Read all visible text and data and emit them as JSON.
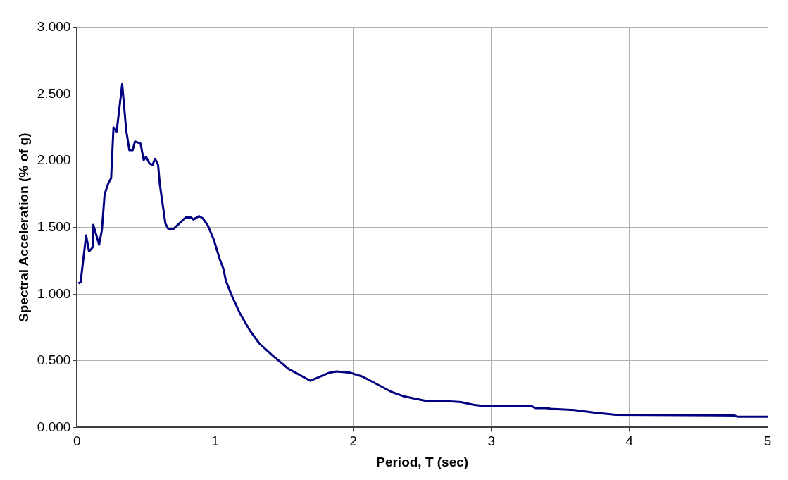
{
  "chart_data": {
    "type": "line",
    "xlabel": "Period, T (sec)",
    "ylabel": "Spectral Acceleration (% of g)",
    "xlim": [
      0,
      5
    ],
    "xticks": [
      0,
      1,
      2,
      3,
      4,
      5
    ],
    "ylim": [
      0,
      3
    ],
    "yticks": [
      {
        "value": 0,
        "label": "0.000"
      },
      {
        "value": 0.5,
        "label": "0.500"
      },
      {
        "value": 1,
        "label": "1.000"
      },
      {
        "value": 1.5,
        "label": "1.500"
      },
      {
        "value": 2,
        "label": "2.000"
      },
      {
        "value": 2.5,
        "label": "2.500"
      },
      {
        "value": 3,
        "label": "3.000"
      }
    ],
    "grid": true,
    "legend": false,
    "marker": "none",
    "line_style": "solid",
    "series": [
      {
        "color": "#000080",
        "x": [
          0.01,
          0.026,
          0.066,
          0.087,
          0.113,
          0.118,
          0.16,
          0.18,
          0.2,
          0.226,
          0.247,
          0.264,
          0.287,
          0.327,
          0.356,
          0.379,
          0.403,
          0.42,
          0.46,
          0.483,
          0.5,
          0.525,
          0.547,
          0.565,
          0.587,
          0.6,
          0.64,
          0.66,
          0.7,
          0.786,
          0.825,
          0.843,
          0.883,
          0.91,
          0.947,
          0.99,
          1.034,
          1.06,
          1.078,
          1.12,
          1.18,
          1.25,
          1.32,
          1.41,
          1.53,
          1.69,
          1.78,
          1.825,
          1.88,
          1.98,
          2.07,
          2.28,
          2.36,
          2.45,
          2.52,
          2.685,
          2.71,
          2.78,
          2.87,
          2.95,
          3.29,
          3.32,
          3.4,
          3.43,
          3.6,
          3.75,
          3.9,
          4.76,
          4.78,
          5
        ],
        "values": [
          1.08,
          1.09,
          1.44,
          1.32,
          1.35,
          1.52,
          1.37,
          1.48,
          1.75,
          1.83,
          1.87,
          2.25,
          2.22,
          2.575,
          2.23,
          2.08,
          2.08,
          2.145,
          2.13,
          2.005,
          2.03,
          1.98,
          1.97,
          2.015,
          1.97,
          1.82,
          1.53,
          1.49,
          1.49,
          1.575,
          1.575,
          1.56,
          1.585,
          1.57,
          1.515,
          1.41,
          1.26,
          1.19,
          1.1,
          0.99,
          0.855,
          0.73,
          0.63,
          0.545,
          0.44,
          0.35,
          0.39,
          0.41,
          0.42,
          0.41,
          0.38,
          0.265,
          0.235,
          0.215,
          0.2,
          0.2,
          0.195,
          0.19,
          0.17,
          0.16,
          0.16,
          0.145,
          0.145,
          0.14,
          0.13,
          0.11,
          0.095,
          0.09,
          0.08,
          0.08
        ]
      }
    ]
  }
}
